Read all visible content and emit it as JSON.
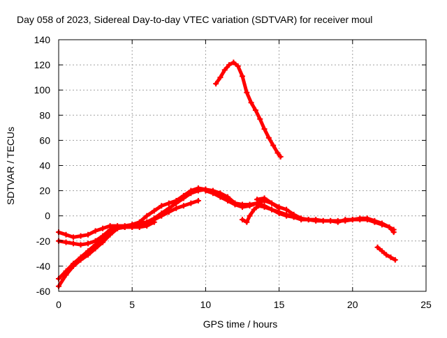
{
  "chart_data": {
    "type": "scatter",
    "title": "Day 058 of 2023, Sidereal Day-to-day VTEC variation (SDTVAR) for receiver moul",
    "xlabel": "GPS time / hours",
    "ylabel": "SDTVAR / TECUs",
    "xlim": [
      0,
      25
    ],
    "ylim": [
      -60,
      140
    ],
    "xticks": [
      0,
      5,
      10,
      15,
      20,
      25
    ],
    "yticks": [
      -60,
      -40,
      -20,
      0,
      20,
      40,
      60,
      80,
      100,
      120,
      140
    ],
    "grid": true,
    "marker": "plus",
    "color": "#ff0000",
    "series": [
      {
        "name": "track-1",
        "x": [
          0.0,
          0.5,
          1.0,
          1.5,
          2.0,
          2.5,
          3.0,
          3.5,
          4.0,
          4.5,
          5.0,
          5.5,
          6.0,
          6.5,
          7.0,
          7.5,
          8.0,
          8.5,
          9.0,
          9.5,
          10.0,
          10.5,
          11.0,
          11.5,
          12.0
        ],
        "y": [
          -56,
          -47,
          -40,
          -35,
          -31,
          -26,
          -21,
          -15,
          -10,
          -9,
          -8,
          -7,
          -5,
          -2,
          2,
          6,
          10,
          14,
          18,
          20,
          21,
          20,
          18,
          15,
          10
        ]
      },
      {
        "name": "track-2",
        "x": [
          0.0,
          0.5,
          1.0,
          1.5,
          2.0,
          2.5,
          3.0,
          3.5,
          4.0,
          4.5,
          5.0,
          5.5,
          6.0
        ],
        "y": [
          -13,
          -15,
          -17,
          -16,
          -15,
          -12,
          -10,
          -8,
          -8,
          -8,
          -7,
          -6,
          -5
        ]
      },
      {
        "name": "track-3",
        "x": [
          0.0,
          0.5,
          1.0,
          1.5,
          2.0,
          2.5,
          3.0,
          3.5,
          4.0,
          4.5,
          5.0,
          5.5,
          6.0,
          6.5
        ],
        "y": [
          -20,
          -21,
          -22,
          -23,
          -22,
          -20,
          -16,
          -11,
          -9,
          -9,
          -9,
          -9,
          -8,
          -5
        ]
      },
      {
        "name": "track-4",
        "x": [
          0.0,
          0.5,
          1.0,
          1.5,
          2.0,
          2.5,
          3.0,
          3.5,
          4.0,
          4.5,
          5.0,
          5.5,
          6.0,
          6.5,
          7.0,
          7.5,
          8.0,
          8.5,
          9.0,
          9.5
        ],
        "y": [
          -50,
          -44,
          -38,
          -33,
          -28,
          -23,
          -19,
          -14,
          -10,
          -9,
          -9,
          -8,
          -6,
          -3,
          0,
          3,
          6,
          8,
          10,
          12
        ]
      },
      {
        "name": "track-5",
        "x": [
          5.0,
          5.5,
          6.0,
          6.5,
          7.0,
          7.5,
          8.0,
          8.5,
          9.0,
          9.5,
          10.0,
          10.5,
          11.0,
          11.5,
          12.0,
          12.5,
          13.0,
          13.5,
          14.0,
          14.5,
          15.0
        ],
        "y": [
          -7,
          -5,
          0,
          4,
          8,
          10,
          12,
          16,
          20,
          22,
          21,
          19,
          16,
          13,
          10,
          9,
          9,
          10,
          12,
          10,
          6
        ]
      },
      {
        "name": "track-6",
        "x": [
          10.0,
          10.5,
          11.0,
          11.5,
          12.0,
          12.5,
          13.0,
          13.5,
          14.0,
          14.5,
          15.0,
          15.5,
          16.0,
          16.5,
          17.0,
          17.5,
          18.0,
          18.5,
          19.0,
          19.5,
          20.0,
          20.5,
          21.0,
          21.5,
          22.0,
          22.5,
          22.8
        ],
        "y": [
          20,
          18,
          15,
          12,
          9,
          7,
          8,
          10,
          8,
          5,
          2,
          0,
          -1,
          -3,
          -3,
          -4,
          -4,
          -4,
          -4,
          -4,
          -3,
          -3,
          -3,
          -5,
          -7,
          -9,
          -11
        ]
      },
      {
        "name": "track-7",
        "x": [
          12.5,
          12.8,
          13.0,
          13.3,
          13.6,
          14.0,
          14.5,
          15.0,
          15.5,
          16.0
        ],
        "y": [
          -3,
          -5,
          0,
          5,
          8,
          7,
          5,
          3,
          1,
          -1
        ]
      },
      {
        "name": "track-8",
        "x": [
          13.5,
          14.0,
          14.5,
          15.0,
          15.5,
          16.0,
          16.5,
          17.0,
          17.5,
          18.0,
          18.5,
          19.0,
          19.5,
          20.0,
          20.5,
          21.0,
          21.5,
          22.0,
          22.5,
          22.8
        ],
        "y": [
          13,
          14,
          10,
          7,
          5,
          1,
          -2,
          -3,
          -3,
          -4,
          -4,
          -5,
          -3,
          -3,
          -2,
          -2,
          -4,
          -6,
          -9,
          -13
        ]
      },
      {
        "name": "track-9",
        "x": [
          10.7,
          11.0,
          11.3,
          11.6,
          11.9,
          12.2,
          12.5,
          12.8,
          13.1,
          13.4,
          13.7,
          14.0,
          14.3,
          14.6,
          14.9,
          15.1
        ],
        "y": [
          105,
          110,
          116,
          120,
          122,
          119,
          111,
          98,
          90,
          84,
          77,
          69,
          62,
          56,
          50,
          47
        ]
      },
      {
        "name": "track-10",
        "x": [
          21.7,
          22.0,
          22.3,
          22.6,
          22.9
        ],
        "y": [
          -25,
          -28,
          -31,
          -33,
          -35
        ]
      }
    ]
  }
}
